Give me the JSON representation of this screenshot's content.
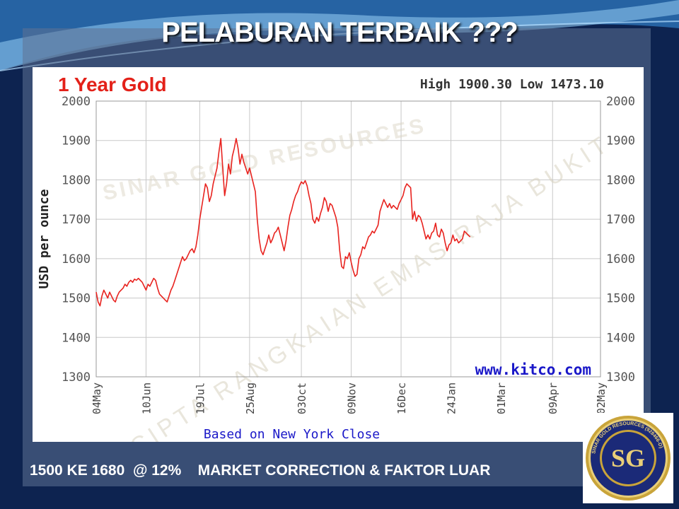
{
  "slide": {
    "title": "PELABURAN TERBAIK  ???",
    "caption": "1500 KE 1680  @ 12%    MARKET CORRECTION & FAKTOR LUAR"
  },
  "watermark": {
    "line1": "HAK CIPTA RANGKAIAN EMAS RAJA BUKIT",
    "line2": "SINAR GOLD RESOURCES"
  },
  "logo": {
    "initials": "SG",
    "ring_text": "SINAR GOLD RESOURCES (928466-D)"
  },
  "colors": {
    "background": "#0d2350",
    "line": "#e8231f",
    "title_red": "#e32119",
    "link_blue": "#1a18c8",
    "grid": "#c8c8c8",
    "logo_gold": "#c9a43a",
    "logo_navy": "#1b2a78"
  },
  "chart_data": {
    "type": "line",
    "title": "1 Year Gold",
    "high_low_label": "High 1900.30 Low 1473.10",
    "ylabel": "USD per ounce",
    "xlabel": "Based on New York Close",
    "source": "www.kitco.com",
    "ylim": [
      1300,
      2000
    ],
    "yticks": [
      2000,
      1900,
      1800,
      1700,
      1600,
      1500,
      1400,
      1300
    ],
    "xlim": [
      0,
      263
    ],
    "x_ticks": [
      {
        "x": 0,
        "label": "04May"
      },
      {
        "x": 26,
        "label": "10Jun"
      },
      {
        "x": 54,
        "label": "19Jul"
      },
      {
        "x": 80,
        "label": "25Aug"
      },
      {
        "x": 107,
        "label": "03Oct"
      },
      {
        "x": 133,
        "label": "09Nov"
      },
      {
        "x": 159,
        "label": "16Dec"
      },
      {
        "x": 185,
        "label": "24Jan"
      },
      {
        "x": 211,
        "label": "01Mar"
      },
      {
        "x": 238,
        "label": "09Apr"
      },
      {
        "x": 263,
        "label": "02May"
      }
    ],
    "grid": true,
    "series": [
      {
        "values": [
          [
            0,
            1515
          ],
          [
            1,
            1490
          ],
          [
            2,
            1480
          ],
          [
            3,
            1505
          ],
          [
            4,
            1520
          ],
          [
            5,
            1510
          ],
          [
            6,
            1500
          ],
          [
            7,
            1515
          ],
          [
            8,
            1505
          ],
          [
            9,
            1495
          ],
          [
            10,
            1490
          ],
          [
            11,
            1505
          ],
          [
            12,
            1515
          ],
          [
            13,
            1520
          ],
          [
            14,
            1525
          ],
          [
            15,
            1535
          ],
          [
            16,
            1530
          ],
          [
            17,
            1540
          ],
          [
            18,
            1545
          ],
          [
            19,
            1540
          ],
          [
            20,
            1548
          ],
          [
            21,
            1545
          ],
          [
            22,
            1550
          ],
          [
            23,
            1545
          ],
          [
            24,
            1540
          ],
          [
            25,
            1530
          ],
          [
            26,
            1520
          ],
          [
            27,
            1535
          ],
          [
            28,
            1530
          ],
          [
            29,
            1540
          ],
          [
            30,
            1550
          ],
          [
            31,
            1545
          ],
          [
            32,
            1525
          ],
          [
            33,
            1510
          ],
          [
            34,
            1505
          ],
          [
            35,
            1500
          ],
          [
            36,
            1495
          ],
          [
            37,
            1490
          ],
          [
            38,
            1505
          ],
          [
            39,
            1520
          ],
          [
            40,
            1530
          ],
          [
            41,
            1545
          ],
          [
            42,
            1560
          ],
          [
            43,
            1575
          ],
          [
            44,
            1590
          ],
          [
            45,
            1605
          ],
          [
            46,
            1595
          ],
          [
            47,
            1600
          ],
          [
            48,
            1610
          ],
          [
            49,
            1620
          ],
          [
            50,
            1625
          ],
          [
            51,
            1615
          ],
          [
            52,
            1630
          ],
          [
            53,
            1660
          ],
          [
            54,
            1700
          ],
          [
            55,
            1730
          ],
          [
            56,
            1760
          ],
          [
            57,
            1790
          ],
          [
            58,
            1780
          ],
          [
            59,
            1745
          ],
          [
            60,
            1760
          ],
          [
            61,
            1790
          ],
          [
            62,
            1810
          ],
          [
            63,
            1830
          ],
          [
            64,
            1870
          ],
          [
            65,
            1905
          ],
          [
            66,
            1830
          ],
          [
            67,
            1760
          ],
          [
            68,
            1790
          ],
          [
            69,
            1840
          ],
          [
            70,
            1815
          ],
          [
            71,
            1860
          ],
          [
            72,
            1880
          ],
          [
            73,
            1905
          ],
          [
            74,
            1880
          ],
          [
            75,
            1840
          ],
          [
            76,
            1865
          ],
          [
            77,
            1845
          ],
          [
            78,
            1830
          ],
          [
            79,
            1815
          ],
          [
            80,
            1830
          ],
          [
            81,
            1810
          ],
          [
            82,
            1790
          ],
          [
            83,
            1770
          ],
          [
            84,
            1700
          ],
          [
            85,
            1650
          ],
          [
            86,
            1620
          ],
          [
            87,
            1610
          ],
          [
            88,
            1625
          ],
          [
            89,
            1640
          ],
          [
            90,
            1660
          ],
          [
            91,
            1640
          ],
          [
            92,
            1650
          ],
          [
            93,
            1665
          ],
          [
            94,
            1670
          ],
          [
            95,
            1680
          ],
          [
            96,
            1660
          ],
          [
            97,
            1640
          ],
          [
            98,
            1620
          ],
          [
            99,
            1645
          ],
          [
            100,
            1680
          ],
          [
            101,
            1710
          ],
          [
            102,
            1725
          ],
          [
            103,
            1745
          ],
          [
            104,
            1760
          ],
          [
            105,
            1770
          ],
          [
            106,
            1785
          ],
          [
            107,
            1795
          ],
          [
            108,
            1790
          ],
          [
            109,
            1798
          ],
          [
            110,
            1785
          ],
          [
            111,
            1760
          ],
          [
            112,
            1740
          ],
          [
            113,
            1700
          ],
          [
            114,
            1690
          ],
          [
            115,
            1705
          ],
          [
            116,
            1695
          ],
          [
            117,
            1715
          ],
          [
            118,
            1730
          ],
          [
            119,
            1755
          ],
          [
            120,
            1745
          ],
          [
            121,
            1720
          ],
          [
            122,
            1740
          ],
          [
            123,
            1735
          ],
          [
            124,
            1720
          ],
          [
            125,
            1705
          ],
          [
            126,
            1680
          ],
          [
            127,
            1620
          ],
          [
            128,
            1580
          ],
          [
            129,
            1575
          ],
          [
            130,
            1605
          ],
          [
            131,
            1600
          ],
          [
            132,
            1615
          ],
          [
            133,
            1590
          ],
          [
            134,
            1570
          ],
          [
            135,
            1555
          ],
          [
            136,
            1560
          ],
          [
            137,
            1600
          ],
          [
            138,
            1610
          ],
          [
            139,
            1630
          ],
          [
            140,
            1625
          ],
          [
            141,
            1640
          ],
          [
            142,
            1655
          ],
          [
            143,
            1660
          ],
          [
            144,
            1670
          ],
          [
            145,
            1665
          ],
          [
            146,
            1675
          ],
          [
            147,
            1685
          ],
          [
            148,
            1720
          ],
          [
            149,
            1735
          ],
          [
            150,
            1750
          ],
          [
            151,
            1740
          ],
          [
            152,
            1730
          ],
          [
            153,
            1740
          ],
          [
            154,
            1728
          ],
          [
            155,
            1735
          ],
          [
            156,
            1730
          ],
          [
            157,
            1725
          ],
          [
            158,
            1740
          ],
          [
            159,
            1750
          ],
          [
            160,
            1760
          ],
          [
            161,
            1780
          ],
          [
            162,
            1790
          ],
          [
            163,
            1785
          ],
          [
            164,
            1780
          ],
          [
            165,
            1700
          ],
          [
            166,
            1720
          ],
          [
            167,
            1695
          ],
          [
            168,
            1710
          ],
          [
            169,
            1705
          ],
          [
            170,
            1690
          ],
          [
            171,
            1670
          ],
          [
            172,
            1650
          ],
          [
            173,
            1660
          ],
          [
            174,
            1650
          ],
          [
            175,
            1665
          ],
          [
            176,
            1670
          ],
          [
            177,
            1690
          ],
          [
            178,
            1660
          ],
          [
            179,
            1655
          ],
          [
            180,
            1675
          ],
          [
            181,
            1665
          ],
          [
            182,
            1640
          ],
          [
            183,
            1620
          ],
          [
            184,
            1635
          ],
          [
            185,
            1640
          ],
          [
            186,
            1660
          ],
          [
            187,
            1645
          ],
          [
            188,
            1650
          ],
          [
            189,
            1640
          ],
          [
            190,
            1645
          ],
          [
            191,
            1650
          ],
          [
            192,
            1670
          ],
          [
            193,
            1665
          ],
          [
            194,
            1660
          ],
          [
            195,
            1655
          ]
        ]
      }
    ]
  }
}
